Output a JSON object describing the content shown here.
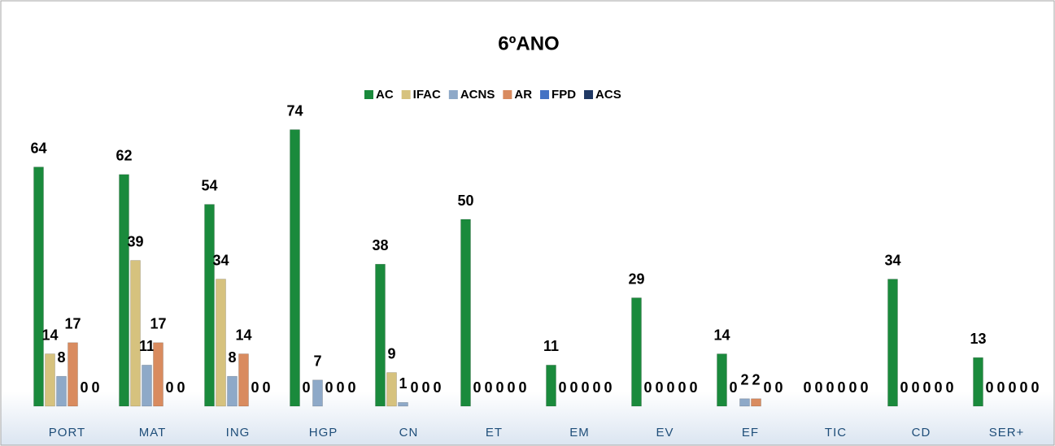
{
  "chart_data": {
    "type": "bar",
    "title": "6ºANO",
    "categories": [
      "PORT",
      "MAT",
      "ING",
      "HGP",
      "CN",
      "ET",
      "EM",
      "EV",
      "EF",
      "TIC",
      "CD",
      "SER+"
    ],
    "series": [
      {
        "name": "AC",
        "color": "#1a8a3c",
        "values": [
          64,
          62,
          54,
          74,
          38,
          50,
          11,
          29,
          14,
          0,
          34,
          13
        ]
      },
      {
        "name": "IFAC",
        "color": "#d6c27e",
        "values": [
          14,
          39,
          34,
          0,
          9,
          0,
          0,
          0,
          0,
          0,
          0,
          0
        ]
      },
      {
        "name": "ACNS",
        "color": "#8ea9c8",
        "values": [
          8,
          11,
          8,
          7,
          1,
          0,
          0,
          0,
          2,
          0,
          0,
          0
        ]
      },
      {
        "name": "AR",
        "color": "#d98b5f",
        "values": [
          17,
          17,
          14,
          0,
          0,
          0,
          0,
          0,
          2,
          0,
          0,
          0
        ]
      },
      {
        "name": "FPD",
        "color": "#4472c4",
        "values": [
          0,
          0,
          0,
          0,
          0,
          0,
          0,
          0,
          0,
          0,
          0,
          0
        ]
      },
      {
        "name": "ACS",
        "color": "#1f3864",
        "values": [
          0,
          0,
          0,
          0,
          0,
          0,
          0,
          0,
          0,
          0,
          0,
          0
        ]
      }
    ],
    "ylim": [
      0,
      80
    ],
    "legend": "top"
  }
}
